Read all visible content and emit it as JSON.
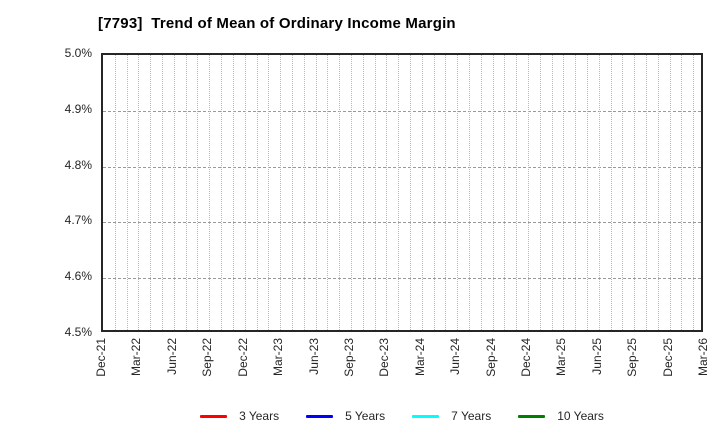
{
  "title": "[7793]  Trend of Mean of Ordinary Income Margin",
  "chart_data": {
    "type": "line",
    "title": "[7793]  Trend of Mean of Ordinary Income Margin",
    "x_tick_labels": [
      "Dec-21",
      "Mar-22",
      "Jun-22",
      "Sep-22",
      "Dec-22",
      "Mar-23",
      "Jun-23",
      "Sep-23",
      "Dec-23",
      "Mar-24",
      "Jun-24",
      "Sep-24",
      "Dec-24",
      "Mar-25",
      "Jun-25",
      "Sep-25",
      "Dec-25",
      "Mar-26"
    ],
    "y_ticks": [
      {
        "value": 4.5,
        "label": "4.5%"
      },
      {
        "value": 4.6,
        "label": "4.6%"
      },
      {
        "value": 4.7,
        "label": "4.7%"
      },
      {
        "value": 4.8,
        "label": "4.8%"
      },
      {
        "value": 4.9,
        "label": "4.9%"
      },
      {
        "value": 5.0,
        "label": "5.0%"
      }
    ],
    "ylim": [
      4.5,
      5.0
    ],
    "grid": true,
    "x_minor_per_major": 3,
    "legend_position": "bottom-center",
    "series": [
      {
        "name": "3 Years",
        "color": "#ff0000",
        "values": []
      },
      {
        "name": "5 Years",
        "color": "#0000ff",
        "values": []
      },
      {
        "name": "7 Years",
        "color": "#00ffff",
        "values": []
      },
      {
        "name": "10 Years",
        "color": "#008000",
        "values": []
      }
    ]
  },
  "colors": {
    "background": "#ffffff",
    "frame": "#262626",
    "text": "#262626",
    "grid_major": "#9a9a9a",
    "grid_minor": "#b8b8b8"
  }
}
